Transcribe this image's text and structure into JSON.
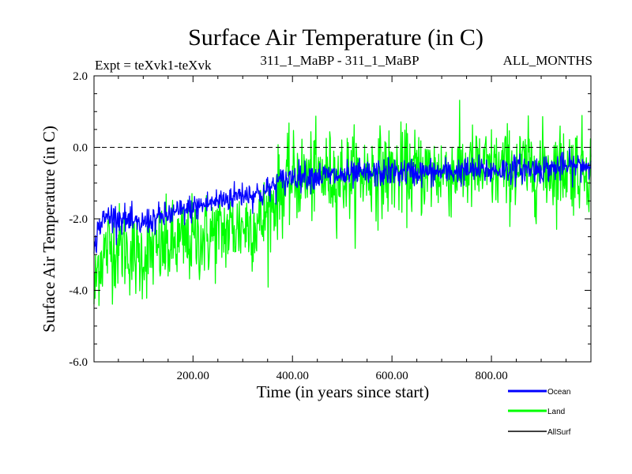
{
  "chart_data": {
    "type": "line",
    "title": "Surface Air Temperature (in C)",
    "subtitle_left": "Expt = teXvk1-teXvk",
    "subtitle_center": "311_1_MaBP - 311_1_MaBP",
    "subtitle_right": "ALL_MONTHS",
    "xlabel": "Time (in years since start)",
    "ylabel": "Surface Air Temperature (in C)",
    "xlim": [
      1,
      1000
    ],
    "ylim": [
      -6.0,
      2.0
    ],
    "x_ticks": [
      200,
      400,
      600,
      800
    ],
    "x_tick_labels": [
      "200.00",
      "400.00",
      "600.00",
      "800.00"
    ],
    "y_ticks": [
      2.0,
      0.0,
      -2.0,
      -4.0,
      -6.0
    ],
    "y_tick_labels": [
      "2.0",
      "0.0",
      "-2.0",
      "-4.0",
      "-6.0"
    ],
    "reference_line": 0.0,
    "grid": false,
    "legend_position": "bottom-right",
    "series": [
      {
        "name": "Ocean",
        "color": "#0000ff",
        "x": [
          1,
          10,
          30,
          60,
          90,
          100,
          150,
          200,
          250,
          300,
          340,
          370,
          390,
          400,
          450,
          500,
          550,
          600,
          650,
          700,
          750,
          800,
          850,
          900,
          950,
          1000
        ],
        "values": [
          -3.0,
          -2.2,
          -1.9,
          -2.0,
          -2.2,
          -2.1,
          -1.9,
          -1.7,
          -1.5,
          -1.3,
          -1.3,
          -1.0,
          -0.9,
          -0.8,
          -0.8,
          -0.8,
          -0.75,
          -0.7,
          -0.7,
          -0.7,
          -0.65,
          -0.65,
          -0.6,
          -0.6,
          -0.55,
          -0.5
        ],
        "noise_amplitude": 0.35
      },
      {
        "name": "Land",
        "color": "#00ff00",
        "x": [
          1,
          10,
          30,
          60,
          90,
          100,
          150,
          200,
          250,
          300,
          340,
          370,
          390,
          400,
          450,
          500,
          550,
          600,
          650,
          700,
          750,
          800,
          850,
          900,
          950,
          1000
        ],
        "values": [
          -4.2,
          -3.2,
          -2.8,
          -2.8,
          -3.1,
          -3.0,
          -2.8,
          -2.6,
          -2.4,
          -2.2,
          -2.1,
          -1.3,
          -1.0,
          -0.9,
          -0.8,
          -0.8,
          -0.75,
          -0.7,
          -0.7,
          -0.7,
          -0.65,
          -0.65,
          -0.6,
          -0.6,
          -0.55,
          -0.55
        ],
        "noise_amplitude": 1.1
      },
      {
        "name": "AllSurf",
        "color": "#000000",
        "x": [],
        "values": []
      }
    ]
  }
}
